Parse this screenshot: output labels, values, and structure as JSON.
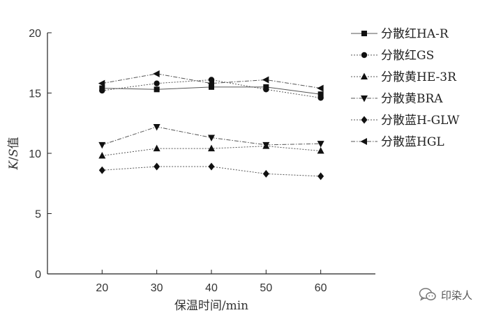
{
  "chart_data": {
    "type": "line",
    "title": "",
    "xlabel": "保温时间/min",
    "ylabel_parts": {
      "k": "K",
      "slash": "/",
      "s": "S",
      "suffix": "值"
    },
    "x": [
      20,
      30,
      40,
      50,
      60
    ],
    "xlim": [
      10,
      70
    ],
    "ylim": [
      0,
      20
    ],
    "xticks": [
      "20",
      "30",
      "40",
      "50",
      "60"
    ],
    "yticks": [
      "0",
      "5",
      "10",
      "15",
      "20"
    ],
    "grid": false,
    "legend_position": "top-right",
    "series": [
      {
        "name": "分散红HA-R",
        "marker": "square",
        "dash": "solid",
        "values": [
          15.4,
          15.3,
          15.5,
          15.5,
          14.9
        ]
      },
      {
        "name": "分散红GS",
        "marker": "circle",
        "dash": "dotted",
        "values": [
          15.2,
          15.8,
          16.1,
          15.3,
          14.6
        ]
      },
      {
        "name": "分散黄HE-3R",
        "marker": "triangle-up",
        "dash": "dotted",
        "values": [
          9.8,
          10.4,
          10.4,
          10.6,
          10.2
        ]
      },
      {
        "name": "分散黄BRA",
        "marker": "triangle-down",
        "dash": "dashdot",
        "values": [
          10.7,
          12.2,
          11.3,
          10.7,
          10.8
        ]
      },
      {
        "name": "分散蓝H-GLW",
        "marker": "diamond",
        "dash": "dotted",
        "values": [
          8.6,
          8.9,
          8.9,
          8.3,
          8.1
        ]
      },
      {
        "name": "分散蓝HGL",
        "marker": "triangle-left",
        "dash": "dashdot",
        "values": [
          15.8,
          16.6,
          15.8,
          16.1,
          15.4
        ]
      }
    ]
  },
  "watermark": {
    "text": "印染人",
    "icon": "wechat-bubble-icon"
  }
}
